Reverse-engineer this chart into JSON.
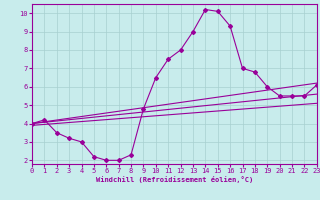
{
  "bg_color": "#c8ecec",
  "grid_color": "#a8d0d0",
  "line_color": "#990099",
  "xlabel": "Windchill (Refroidissement éolien,°C)",
  "xlim": [
    0,
    23
  ],
  "ylim": [
    1.8,
    10.5
  ],
  "yticks": [
    2,
    3,
    4,
    5,
    6,
    7,
    8,
    9,
    10
  ],
  "xticks": [
    0,
    1,
    2,
    3,
    4,
    5,
    6,
    7,
    8,
    9,
    10,
    11,
    12,
    13,
    14,
    15,
    16,
    17,
    18,
    19,
    20,
    21,
    22,
    23
  ],
  "main_x": [
    0,
    1,
    2,
    3,
    4,
    5,
    6,
    7,
    8,
    9,
    10,
    11,
    12,
    13,
    14,
    15,
    16,
    17,
    18,
    19,
    20,
    21,
    22,
    23
  ],
  "main_y": [
    4.0,
    4.2,
    3.5,
    3.2,
    3.0,
    2.2,
    2.0,
    2.0,
    2.3,
    4.8,
    6.5,
    7.5,
    8.0,
    9.0,
    10.2,
    10.1,
    9.3,
    7.0,
    6.8,
    6.0,
    5.5,
    5.5,
    5.5,
    6.1
  ],
  "line2_x": [
    0,
    23
  ],
  "line2_y": [
    4.0,
    6.2
  ],
  "line3_x": [
    0,
    23
  ],
  "line3_y": [
    4.0,
    5.6
  ],
  "line4_x": [
    0,
    23
  ],
  "line4_y": [
    3.9,
    5.1
  ]
}
